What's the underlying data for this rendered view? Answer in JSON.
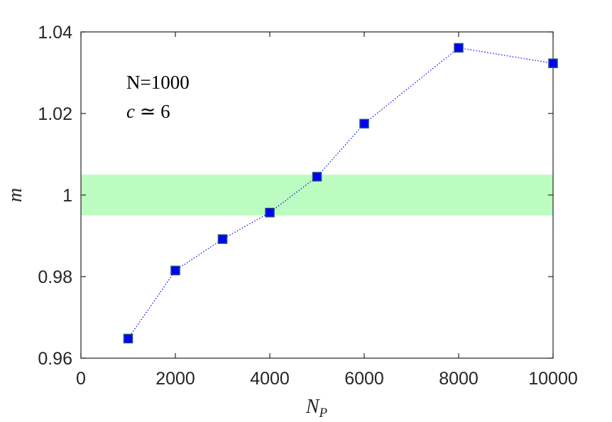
{
  "chart_data": {
    "type": "line",
    "xlabel": "N",
    "xlabel_sub": "P",
    "ylabel": "m",
    "xlim": [
      0,
      10000
    ],
    "ylim": [
      0.96,
      1.04
    ],
    "xticks": [
      0,
      2000,
      4000,
      6000,
      8000,
      10000
    ],
    "xtick_labels": [
      "0",
      "2000",
      "4000",
      "6000",
      "8000",
      "10000"
    ],
    "yticks": [
      0.96,
      0.98,
      1.0,
      1.02,
      1.04
    ],
    "ytick_labels": [
      "0.96",
      "0.98",
      "1",
      "1.02",
      "1.04"
    ],
    "grid": false,
    "band": {
      "y_min": 0.995,
      "y_max": 1.005,
      "color": "#bdfcc0"
    },
    "series": [
      {
        "x": [
          1000,
          2000,
          3000,
          4000,
          5000,
          6000,
          8000,
          10000
        ],
        "y": [
          0.9648,
          0.9815,
          0.9892,
          0.9957,
          1.0045,
          1.0175,
          1.0361,
          1.0323
        ],
        "color": "#0000ff",
        "marker": "square",
        "linestyle": "dotted"
      }
    ],
    "annotations": {
      "line1": "N=1000",
      "line2_var": "c",
      "line2_rel": " ≃ 6"
    }
  }
}
